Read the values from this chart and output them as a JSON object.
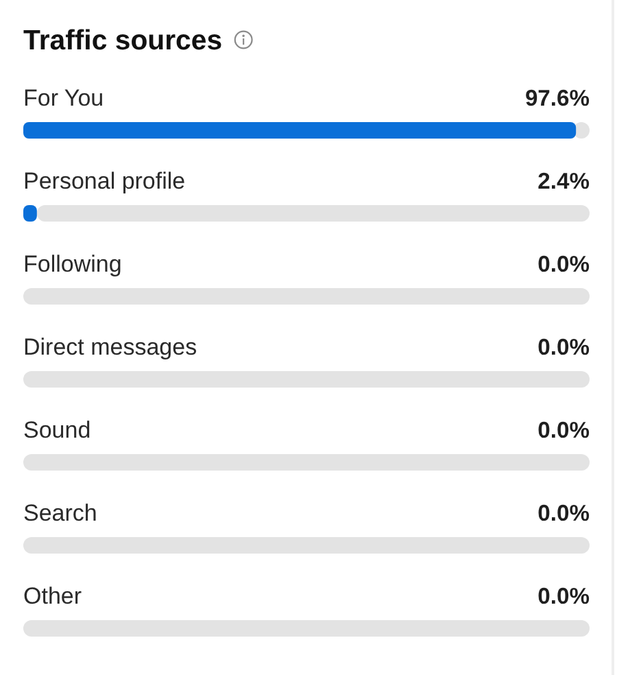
{
  "chart_data": {
    "type": "bar",
    "orientation": "horizontal",
    "title": "Traffic sources",
    "categories": [
      "For You",
      "Personal profile",
      "Following",
      "Direct messages",
      "Sound",
      "Search",
      "Other"
    ],
    "values": [
      97.6,
      2.4,
      0,
      0,
      0,
      0,
      0
    ],
    "color": "#0a6fd8",
    "value_labels": [
      "97.6%",
      "2.4%",
      "0.0%",
      "0.0%",
      "0.0%",
      "0.0%",
      "0.0%"
    ],
    "tick_labels": "y"
  }
}
